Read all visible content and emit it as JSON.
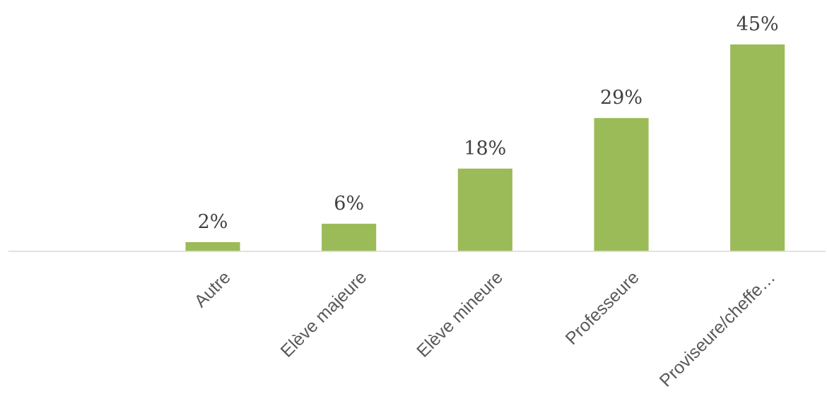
{
  "chart_data": {
    "type": "bar",
    "title": "",
    "xlabel": "",
    "ylabel": "",
    "categories": [
      "",
      "Autre",
      "Elève majeure",
      "Elève mineure",
      "Professeure",
      "Proviseure/cheffe…"
    ],
    "values": [
      0,
      2,
      6,
      18,
      29,
      45
    ],
    "value_labels": [
      "",
      "2%",
      "6%",
      "18%",
      "29%",
      "45%"
    ],
    "ylim": [
      0,
      45
    ],
    "grid": false,
    "legend": "none",
    "colors": {
      "bar": "#9bbb59",
      "axis": "#d9d9d9",
      "value_text": "#404040",
      "category_text": "#595959"
    }
  }
}
